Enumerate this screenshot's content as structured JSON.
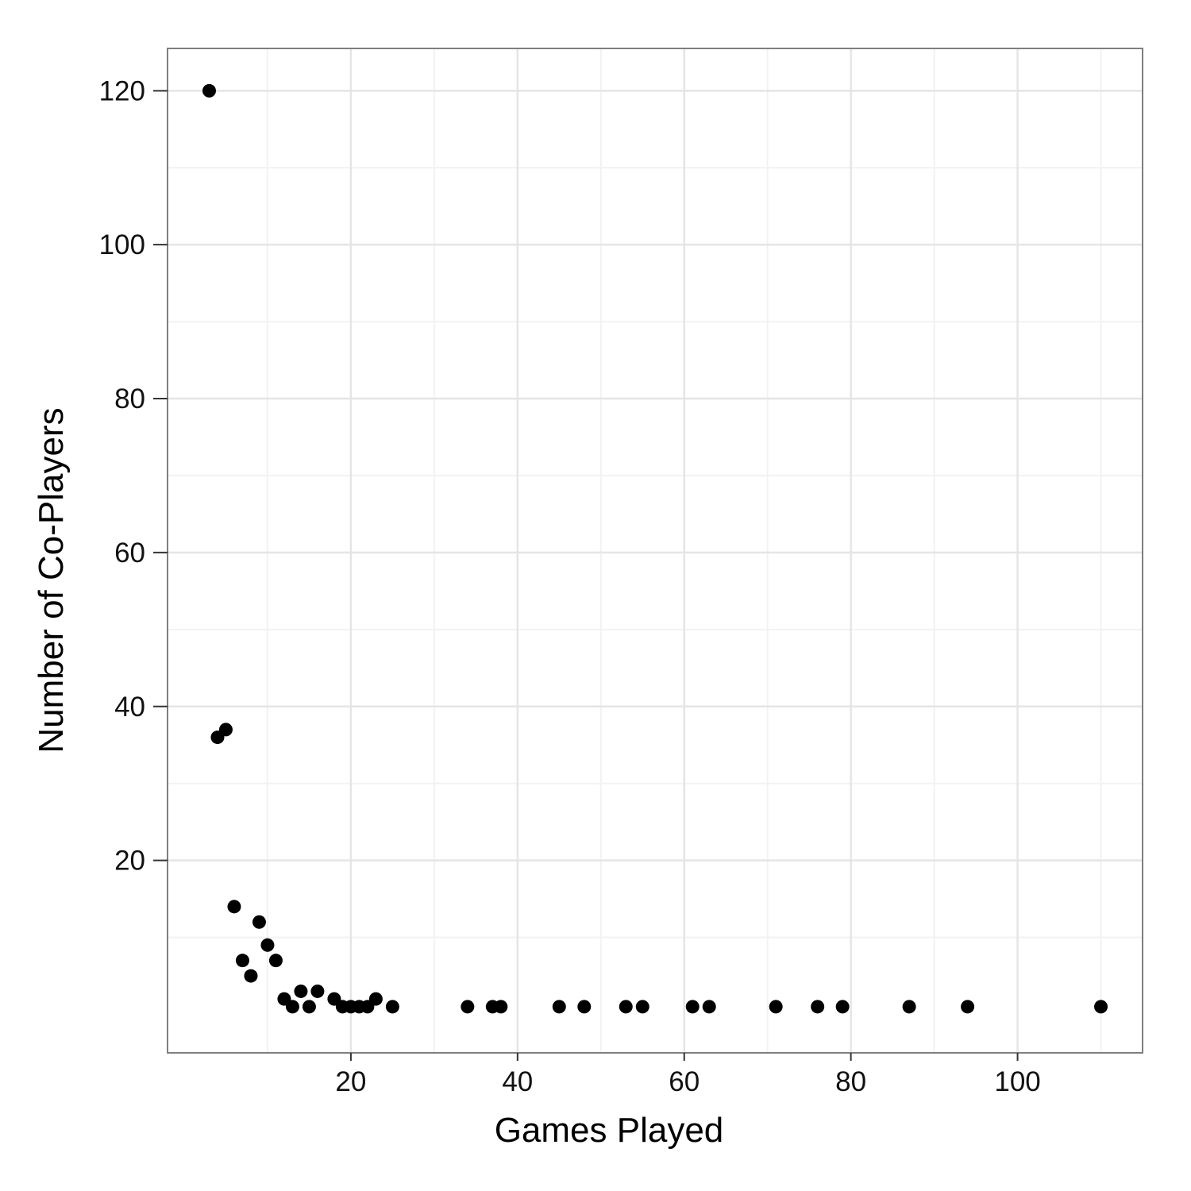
{
  "chart_data": {
    "type": "scatter",
    "title": "",
    "xlabel": "Games Played",
    "ylabel": "Number of Co-Players",
    "xlim": [
      -2,
      115
    ],
    "ylim": [
      -5,
      125.5
    ],
    "x_ticks": [
      20,
      40,
      60,
      80,
      100
    ],
    "y_ticks": [
      20,
      40,
      60,
      80,
      100,
      120
    ],
    "x_minor": [
      10,
      30,
      50,
      70,
      90,
      110
    ],
    "y_minor": [
      10,
      30,
      50,
      70,
      90,
      110
    ],
    "grid": true,
    "colors": {
      "panel_border": "#7f7f7f",
      "grid_major": "#e5e5e5",
      "grid_minor": "#f2f2f2",
      "point": "#000000"
    },
    "points": [
      {
        "x": 3,
        "y": 120
      },
      {
        "x": 4,
        "y": 36
      },
      {
        "x": 5,
        "y": 37
      },
      {
        "x": 6,
        "y": 14
      },
      {
        "x": 7,
        "y": 7
      },
      {
        "x": 8,
        "y": 5
      },
      {
        "x": 9,
        "y": 12
      },
      {
        "x": 10,
        "y": 9
      },
      {
        "x": 11,
        "y": 7
      },
      {
        "x": 12,
        "y": 2
      },
      {
        "x": 13,
        "y": 1
      },
      {
        "x": 14,
        "y": 3
      },
      {
        "x": 15,
        "y": 1
      },
      {
        "x": 16,
        "y": 3
      },
      {
        "x": 18,
        "y": 2
      },
      {
        "x": 19,
        "y": 1
      },
      {
        "x": 20,
        "y": 1
      },
      {
        "x": 21,
        "y": 1
      },
      {
        "x": 22,
        "y": 1
      },
      {
        "x": 23,
        "y": 2
      },
      {
        "x": 25,
        "y": 1
      },
      {
        "x": 34,
        "y": 1
      },
      {
        "x": 37,
        "y": 1
      },
      {
        "x": 38,
        "y": 1
      },
      {
        "x": 45,
        "y": 1
      },
      {
        "x": 48,
        "y": 1
      },
      {
        "x": 53,
        "y": 1
      },
      {
        "x": 55,
        "y": 1
      },
      {
        "x": 61,
        "y": 1
      },
      {
        "x": 63,
        "y": 1
      },
      {
        "x": 71,
        "y": 1
      },
      {
        "x": 76,
        "y": 1
      },
      {
        "x": 79,
        "y": 1
      },
      {
        "x": 87,
        "y": 1
      },
      {
        "x": 94,
        "y": 1
      },
      {
        "x": 110,
        "y": 1
      }
    ]
  }
}
